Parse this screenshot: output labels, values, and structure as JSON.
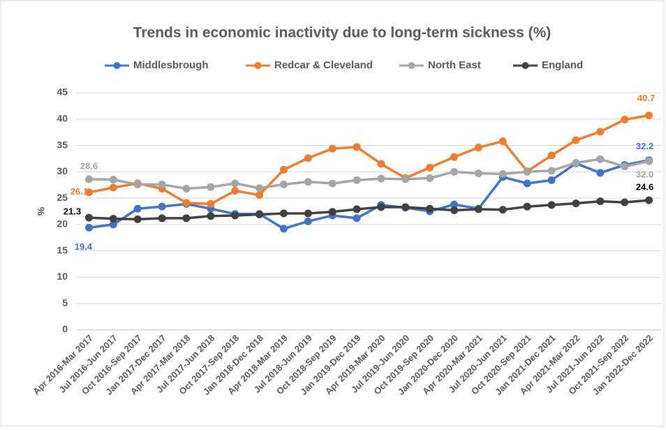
{
  "chart_data": {
    "type": "line",
    "title": "Trends in economic inactivity due to long-term sickness (%)",
    "y_label": "%",
    "categories": [
      "Apr 2016-Mar 2017",
      "Jul 2016-Jun 2017",
      "Oct 2016-Sep 2017",
      "Jan 2017-Dec 2017",
      "Apr 2017-Mar 2018",
      "Jul 2017-Jun 2018",
      "Oct 2017-Sep 2018",
      "Jan 2018-Dec 2018",
      "Apr 2018-Mar 2019",
      "Jul 2018-Jun 2019",
      "Oct 2018-Sep 2019",
      "Jan 2019-Dec 2019",
      "Apr 2019-Mar 2020",
      "Jul 2019-Jun 2020",
      "Oct 2019-Sep 2020",
      "Jan 2020-Dec 2020",
      "Apr 2020-Mar 2021",
      "Jul 2020-Jun 2021",
      "Oct 2020-Sep 2021",
      "Jan 2021-Dec 2021",
      "Apr 2021-Mar 2022",
      "Jul 2021-Jun 2022",
      "Oct 2021-Sep 2022",
      "Jan 2022-Dec 2022"
    ],
    "series": [
      {
        "name": "Middlesbrough",
        "color": "#4472c4",
        "values": [
          19.4,
          20.0,
          23.0,
          23.4,
          23.9,
          23.0,
          22.0,
          22.0,
          19.2,
          20.6,
          21.7,
          21.2,
          23.7,
          23.2,
          22.5,
          23.8,
          23.0,
          29.0,
          27.8,
          28.4,
          31.6,
          29.8,
          31.3,
          32.2
        ],
        "value_labels": [
          "19.4",
          null,
          null,
          null,
          null,
          null,
          null,
          null,
          null,
          null,
          null,
          null,
          null,
          null,
          null,
          null,
          null,
          null,
          null,
          null,
          null,
          null,
          null,
          "32.2"
        ]
      },
      {
        "name": "Redcar & Cleveland",
        "color": "#ed7d31",
        "values": [
          26.1,
          27.0,
          27.8,
          26.8,
          24.1,
          23.9,
          26.4,
          25.6,
          30.4,
          32.6,
          34.4,
          34.7,
          31.5,
          28.8,
          30.8,
          32.8,
          34.6,
          35.8,
          30.1,
          33.1,
          36.0,
          37.6,
          39.9,
          40.7
        ],
        "value_labels": [
          "26.1",
          null,
          null,
          null,
          null,
          null,
          null,
          null,
          null,
          null,
          null,
          null,
          null,
          null,
          null,
          null,
          null,
          null,
          null,
          null,
          null,
          null,
          null,
          "40.7"
        ]
      },
      {
        "name": "North East",
        "color": "#a5a5a5",
        "values": [
          28.6,
          28.5,
          27.6,
          27.6,
          26.8,
          27.1,
          27.8,
          26.9,
          27.6,
          28.1,
          27.8,
          28.4,
          28.7,
          28.6,
          28.8,
          30.0,
          29.7,
          29.6,
          30.0,
          30.2,
          31.7,
          32.4,
          31.0,
          32.0
        ],
        "value_labels": [
          "28.6",
          null,
          null,
          null,
          null,
          null,
          null,
          null,
          null,
          null,
          null,
          null,
          null,
          null,
          null,
          null,
          null,
          null,
          null,
          null,
          null,
          null,
          null,
          "32.0"
        ]
      },
      {
        "name": "England",
        "color": "#404040",
        "values": [
          21.3,
          21.1,
          21.0,
          21.2,
          21.2,
          21.6,
          21.7,
          21.9,
          22.1,
          22.1,
          22.4,
          22.9,
          23.3,
          23.3,
          23.0,
          22.7,
          22.9,
          22.8,
          23.4,
          23.7,
          24.0,
          24.4,
          24.2,
          24.6
        ],
        "value_labels": [
          "21.3",
          null,
          null,
          null,
          null,
          null,
          null,
          null,
          null,
          null,
          null,
          null,
          null,
          null,
          null,
          null,
          null,
          null,
          null,
          null,
          null,
          null,
          null,
          "24.6"
        ]
      }
    ],
    "ylim": [
      0,
      45
    ],
    "yticks": [
      0,
      5,
      10,
      15,
      20,
      25,
      30,
      35,
      40,
      45
    ],
    "grid": true
  }
}
